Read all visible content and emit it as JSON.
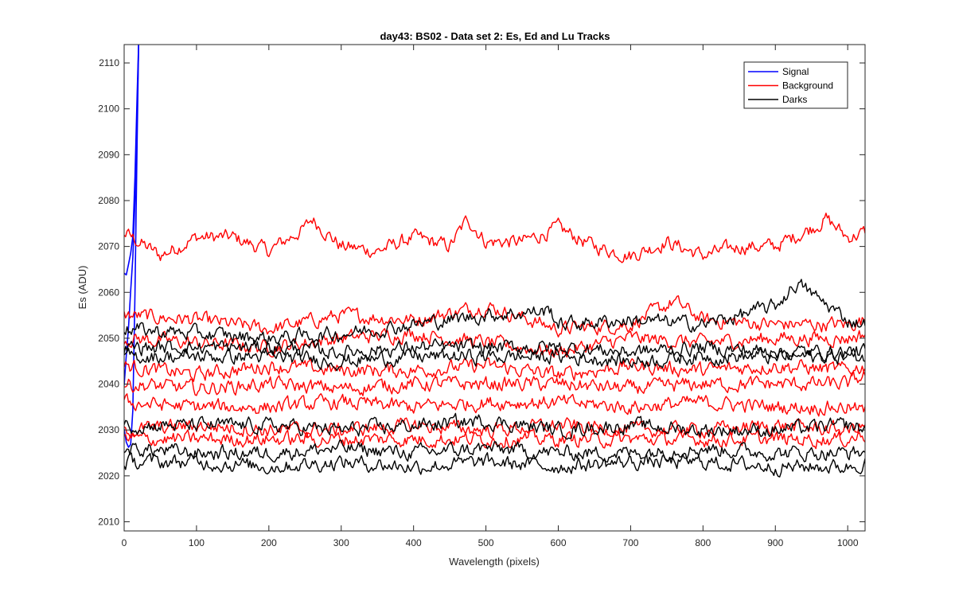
{
  "chart_data": {
    "type": "line",
    "title": "day43: BS02 - Data set 2: Es, Ed and Lu Tracks",
    "xlabel": "Wavelength (pixels)",
    "ylabel": "Es (ADU)",
    "xlim": [
      0,
      1024
    ],
    "ylim": [
      2008,
      2114
    ],
    "xticks": [
      0,
      100,
      200,
      300,
      400,
      500,
      600,
      700,
      800,
      900,
      1000
    ],
    "yticks": [
      2010,
      2020,
      2030,
      2040,
      2050,
      2060,
      2070,
      2080,
      2090,
      2100,
      2110
    ],
    "grid": false,
    "legend": {
      "position": "top-right",
      "entries": [
        {
          "name": "Signal",
          "color": "#0000ff"
        },
        {
          "name": "Background",
          "color": "#ff0000"
        },
        {
          "name": "Darks",
          "color": "#000000"
        }
      ]
    },
    "series": [
      {
        "name": "Signal",
        "color": "#0000ff",
        "x": [
          0,
          3,
          6,
          9,
          12,
          15,
          18,
          20
        ],
        "y": [
          2064,
          2064,
          2066,
          2068,
          2072,
          2085,
          2104,
          2114
        ]
      },
      {
        "name": "Signal",
        "color": "#0000ff",
        "x": [
          0,
          3,
          6,
          9,
          12,
          15,
          18,
          20
        ],
        "y": [
          2030,
          2027,
          2026,
          2027,
          2034,
          2060,
          2094,
          2114
        ]
      },
      {
        "name": "Signal",
        "color": "#0000ff",
        "x": [
          0,
          3,
          6,
          9,
          12,
          15,
          18,
          20
        ],
        "y": [
          2040,
          2046,
          2052,
          2060,
          2068,
          2080,
          2100,
          2114
        ]
      },
      {
        "name": "Background",
        "color": "#ff0000",
        "x": [
          0,
          50,
          100,
          150,
          200,
          250,
          260,
          300,
          350,
          400,
          450,
          475,
          500,
          550,
          600,
          650,
          700,
          750,
          800,
          850,
          900,
          950,
          970,
          1000,
          1024
        ],
        "y": [
          2073,
          2068,
          2072,
          2072,
          2069,
          2074,
          2076,
          2070,
          2069,
          2072,
          2070,
          2076,
          2071,
          2071,
          2074,
          2070,
          2068,
          2071,
          2068,
          2070,
          2070,
          2074,
          2076,
          2072,
          2073
        ]
      },
      {
        "name": "Background",
        "color": "#ff0000",
        "x": [
          0,
          100,
          200,
          300,
          400,
          500,
          600,
          700,
          760,
          800,
          900,
          1000,
          1024
        ],
        "y": [
          2055,
          2054,
          2052,
          2055,
          2054,
          2057,
          2052,
          2053,
          2058,
          2054,
          2053,
          2053,
          2054
        ]
      },
      {
        "name": "Background",
        "color": "#ff0000",
        "x": [
          0,
          100,
          200,
          300,
          400,
          500,
          600,
          700,
          800,
          900,
          1000,
          1024
        ],
        "y": [
          2050,
          2049,
          2048,
          2050,
          2051,
          2049,
          2047,
          2050,
          2049,
          2050,
          2050,
          2051
        ]
      },
      {
        "name": "Background",
        "color": "#ff0000",
        "x": [
          0,
          100,
          200,
          300,
          400,
          500,
          600,
          700,
          800,
          900,
          1000,
          1024
        ],
        "y": [
          2044,
          2042,
          2044,
          2043,
          2043,
          2044,
          2042,
          2044,
          2043,
          2044,
          2043,
          2044
        ]
      },
      {
        "name": "Background",
        "color": "#ff0000",
        "x": [
          0,
          100,
          200,
          300,
          400,
          500,
          600,
          700,
          800,
          900,
          1000,
          1024
        ],
        "y": [
          2040,
          2039,
          2040,
          2039,
          2040,
          2040,
          2040,
          2039,
          2040,
          2040,
          2040,
          2042
        ]
      },
      {
        "name": "Background",
        "color": "#ff0000",
        "x": [
          0,
          100,
          200,
          300,
          400,
          500,
          600,
          700,
          800,
          900,
          1000,
          1024
        ],
        "y": [
          2036,
          2035,
          2035,
          2036,
          2035,
          2036,
          2036,
          2035,
          2036,
          2035,
          2035,
          2034
        ]
      },
      {
        "name": "Background",
        "color": "#ff0000",
        "x": [
          0,
          100,
          200,
          300,
          400,
          500,
          600,
          700,
          800,
          900,
          1000,
          1024
        ],
        "y": [
          2030,
          2031,
          2030,
          2030,
          2031,
          2030,
          2031,
          2030,
          2030,
          2031,
          2030,
          2031
        ]
      },
      {
        "name": "Background",
        "color": "#ff0000",
        "x": [
          0,
          100,
          200,
          300,
          400,
          500,
          600,
          700,
          800,
          900,
          1000,
          1024
        ],
        "y": [
          2028,
          2028,
          2028,
          2028,
          2028,
          2028,
          2028,
          2028,
          2028,
          2028,
          2028,
          2029
        ]
      },
      {
        "name": "Darks",
        "color": "#000000",
        "x": [
          0,
          100,
          200,
          300,
          400,
          500,
          590,
          600,
          700,
          800,
          900,
          930,
          1000,
          1024
        ],
        "y": [
          2052,
          2051,
          2050,
          2051,
          2053,
          2055,
          2056,
          2053,
          2054,
          2053,
          2057,
          2062,
          2054,
          2053
        ]
      },
      {
        "name": "Darks",
        "color": "#000000",
        "x": [
          0,
          100,
          200,
          300,
          400,
          500,
          600,
          700,
          800,
          900,
          1000,
          1024
        ],
        "y": [
          2048,
          2048,
          2048,
          2047,
          2048,
          2048,
          2048,
          2047,
          2048,
          2047,
          2047,
          2047
        ]
      },
      {
        "name": "Darks",
        "color": "#000000",
        "x": [
          0,
          100,
          200,
          300,
          400,
          500,
          600,
          700,
          800,
          900,
          1000,
          1024
        ],
        "y": [
          2046,
          2046,
          2046,
          2045,
          2046,
          2046,
          2046,
          2045,
          2046,
          2046,
          2046,
          2046
        ]
      },
      {
        "name": "Darks",
        "color": "#000000",
        "x": [
          0,
          100,
          200,
          300,
          400,
          500,
          600,
          700,
          800,
          900,
          1000,
          1024
        ],
        "y": [
          2031,
          2031,
          2031,
          2030,
          2031,
          2032,
          2030,
          2031,
          2030,
          2030,
          2031,
          2030
        ]
      },
      {
        "name": "Darks",
        "color": "#000000",
        "x": [
          0,
          100,
          200,
          300,
          400,
          500,
          600,
          700,
          800,
          900,
          1000,
          1024
        ],
        "y": [
          2026,
          2025,
          2025,
          2026,
          2025,
          2026,
          2025,
          2025,
          2026,
          2025,
          2025,
          2025
        ]
      },
      {
        "name": "Darks",
        "color": "#000000",
        "x": [
          0,
          100,
          200,
          300,
          400,
          500,
          600,
          700,
          800,
          900,
          1000,
          1024
        ],
        "y": [
          2023,
          2023,
          2022,
          2023,
          2022,
          2023,
          2022,
          2023,
          2023,
          2022,
          2022,
          2023
        ]
      }
    ]
  }
}
